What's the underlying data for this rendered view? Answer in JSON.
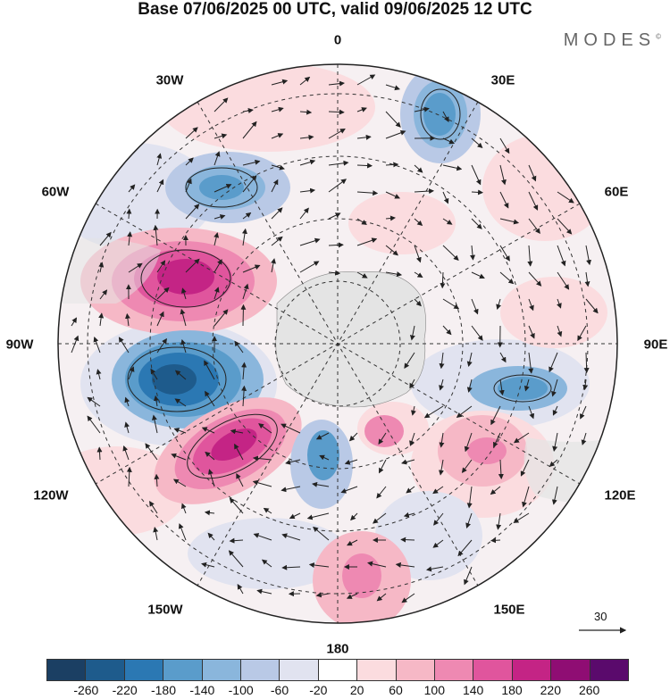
{
  "title": "Base 07/06/2025 00 UTC, valid 09/06/2025 12 UTC",
  "brand": "MODES",
  "brand_mark": "©",
  "labels": {
    "n0": "0",
    "e30": "30E",
    "e60": "60E",
    "e90": "90E",
    "e120": "120E",
    "e150": "150E",
    "s180": "180",
    "w150": "150W",
    "w120": "120W",
    "w90": "90W",
    "w60": "60W",
    "w30": "30W"
  },
  "reference_vector": "30",
  "colorbar": {
    "colors": [
      "#1b3f63",
      "#1e5b8c",
      "#2b78b3",
      "#5a9ccb",
      "#8ab6dc",
      "#b9c9e6",
      "#e1e3f0",
      "#ffffff",
      "#fbdcdf",
      "#f6b8c6",
      "#ee89b2",
      "#e0559d",
      "#c42485",
      "#8f0d73",
      "#5a0a6c"
    ],
    "ticks": [
      "-260",
      "-220",
      "-180",
      "-140",
      "-100",
      "-60",
      "-20",
      "20",
      "60",
      "100",
      "140",
      "180",
      "220",
      "260"
    ]
  }
}
